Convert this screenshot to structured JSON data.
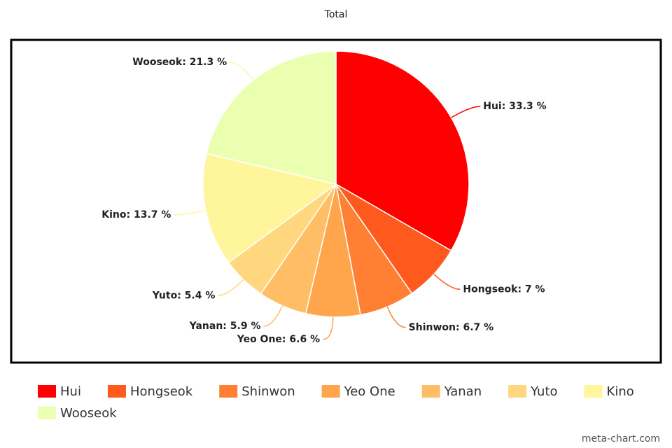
{
  "chart_data": {
    "type": "pie",
    "title": "Total",
    "categories": [
      "Hui",
      "Hongseok",
      "Shinwon",
      "Yeo One",
      "Yanan",
      "Yuto",
      "Kino",
      "Wooseok"
    ],
    "values": [
      33.3,
      7,
      6.7,
      6.6,
      5.9,
      5.4,
      13.7,
      21.3
    ],
    "value_labels": [
      "Hui: 33.3 %",
      "Hongseok: 7 %",
      "Shinwon: 6.7 %",
      "Yeo One: 6.6 %",
      "Yanan: 5.9 %",
      "Yuto: 5.4 %",
      "Kino: 13.7 %",
      "Wooseok: 21.3 %"
    ],
    "colors": [
      "#ff0000",
      "#ff5a1e",
      "#ff7f33",
      "#ffa64d",
      "#ffbe66",
      "#ffd77f",
      "#fff59a",
      "#eaffb0"
    ],
    "legend": "bottom",
    "watermark": "meta-chart.com"
  }
}
